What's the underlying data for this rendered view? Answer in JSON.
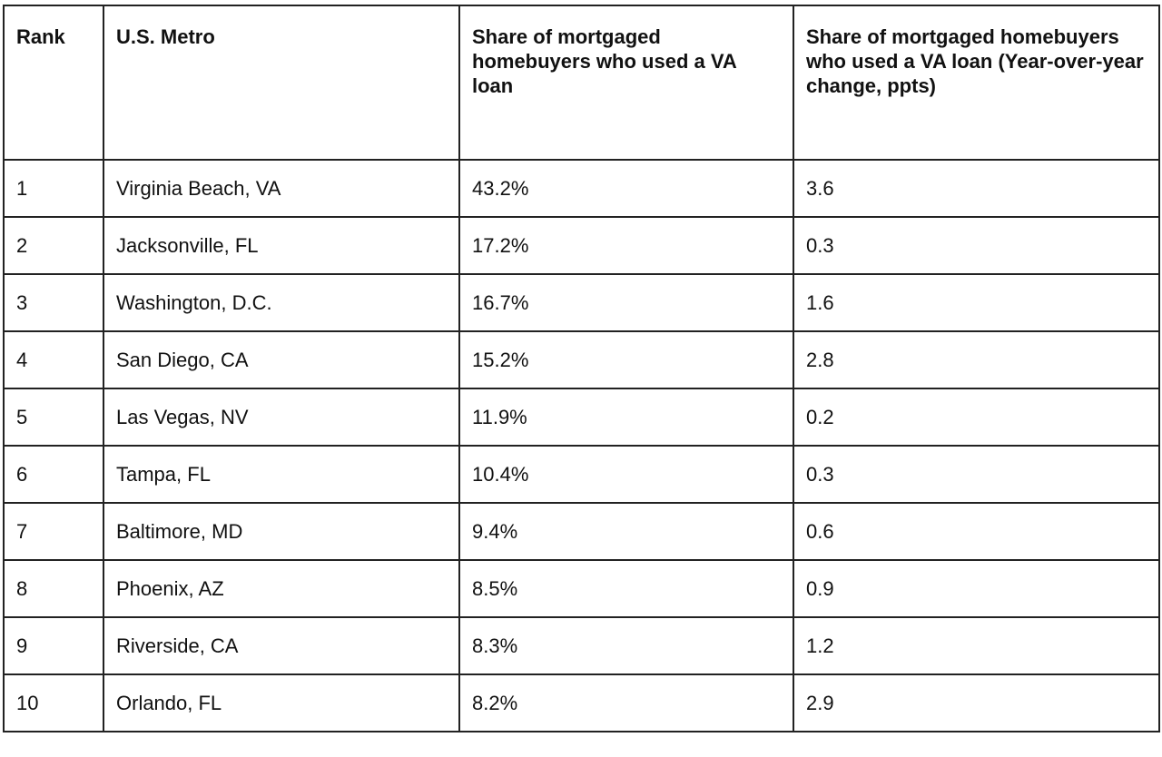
{
  "table": {
    "headers": [
      "Rank",
      "U.S. Metro",
      "Share of mortgaged homebuyers who used a VA loan",
      "Share of mortgaged homebuyers who used a VA loan (Year-over-year change, ppts)"
    ],
    "rows": [
      [
        "1",
        "Virginia Beach, VA",
        "43.2%",
        "3.6"
      ],
      [
        "2",
        "Jacksonville, FL",
        "17.2%",
        "0.3"
      ],
      [
        "3",
        "Washington, D.C.",
        "16.7%",
        "1.6"
      ],
      [
        "4",
        "San Diego, CA",
        "15.2%",
        "2.8"
      ],
      [
        "5",
        "Las Vegas, NV",
        "11.9%",
        "0.2"
      ],
      [
        "6",
        "Tampa, FL",
        "10.4%",
        "0.3"
      ],
      [
        "7",
        "Baltimore, MD",
        "9.4%",
        "0.6"
      ],
      [
        "8",
        "Phoenix, AZ",
        "8.5%",
        "0.9"
      ],
      [
        "9",
        "Riverside, CA",
        "8.3%",
        "1.2"
      ],
      [
        "10",
        "Orlando, FL",
        "8.2%",
        "2.9"
      ]
    ]
  }
}
